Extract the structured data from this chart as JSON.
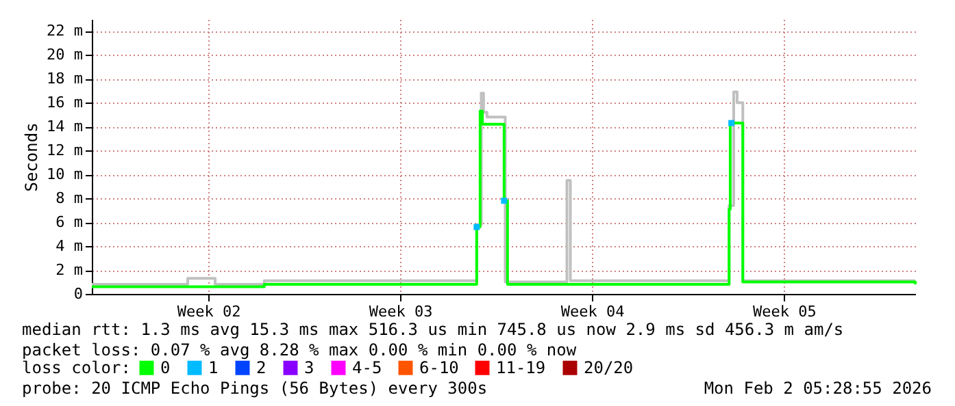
{
  "chart_data": {
    "type": "step",
    "ylabel": "Seconds",
    "x": [
      "2026-01-04T06:00",
      "2026-01-08T11:00",
      "2026-01-10T13:00",
      "2026-01-13T06:00",
      "2026-01-18T07:00",
      "2026-01-18T10:00",
      "2026-01-18T12:00",
      "2026-01-19T07:00",
      "2026-01-19T10:00",
      "2026-01-22T06:00",
      "2026-01-27T12:00",
      "2026-01-27T13:00",
      "2026-01-28T00:00",
      "2026-02-03T07:00"
    ],
    "series": [
      {
        "type": "step",
        "color": "#c0c0c0",
        "x": [
          "2026-01-04T06:00",
          "2026-01-07T18:00",
          "2026-01-08T18:00",
          "2026-01-10T13:00",
          "2026-01-18T07:00",
          "2026-01-18T11:00",
          "2026-01-18T13:00",
          "2026-01-18T16:00",
          "2026-01-19T08:00",
          "2026-01-21T14:00",
          "2026-01-21T17:00",
          "2026-01-27T12:00",
          "2026-01-27T16:00",
          "2026-01-27T19:00",
          "2026-01-28T00:00",
          "2026-02-03T07:00"
        ],
        "values": [
          0.8,
          1.3,
          0.8,
          1.1,
          5.8,
          16.8,
          15.2,
          14.8,
          1.0,
          9.5,
          1.1,
          7.4,
          16.9,
          16.0,
          1.1,
          1.1
        ]
      },
      {
        "name": "0",
        "color": "#00ff00",
        "values": [
          0.6,
          0.6,
          0.8,
          0.8,
          5.6,
          15.3,
          14.2,
          7.8,
          0.8,
          0.8,
          7.1,
          14.3,
          1.0,
          0.8
        ]
      },
      {
        "type": "scatter",
        "name": "1",
        "color": "#00bbff",
        "x": [
          "2026-01-18T07:00",
          "2026-01-19T07:00",
          "2026-01-27T14:00"
        ],
        "values": [
          5.6,
          7.8,
          14.3
        ]
      },
      {
        "type": "scatter",
        "name": "2",
        "color": "#0044ff",
        "values": [
          null,
          null,
          null,
          null,
          null,
          null,
          null,
          null,
          null,
          null,
          null,
          null,
          null,
          null
        ]
      },
      {
        "type": "scatter",
        "name": "3",
        "color": "#8800ff",
        "values": [
          null,
          null,
          null,
          null,
          null,
          null,
          null,
          null,
          null,
          null,
          null,
          null,
          null,
          null
        ]
      },
      {
        "type": "scatter",
        "name": "4-5",
        "color": "#ff00ff",
        "values": [
          null,
          null,
          null,
          null,
          null,
          null,
          null,
          null,
          null,
          null,
          null,
          null,
          null,
          null
        ]
      },
      {
        "type": "scatter",
        "name": "6-10",
        "color": "#ff5500",
        "values": [
          null,
          null,
          null,
          null,
          null,
          null,
          null,
          null,
          null,
          null,
          null,
          null,
          null,
          null
        ]
      },
      {
        "type": "scatter",
        "name": "11-19",
        "color": "#ff0000",
        "values": [
          null,
          null,
          null,
          null,
          null,
          null,
          null,
          null,
          null,
          null,
          null,
          null,
          null,
          null
        ]
      },
      {
        "type": "scatter",
        "name": "20/20",
        "color": "#aa0000",
        "values": [
          null,
          null,
          null,
          null,
          null,
          null,
          null,
          null,
          null,
          null,
          null,
          null,
          null,
          null
        ]
      }
    ],
    "legend_title": "loss color:",
    "legend": "bottom",
    "xlim": [
      "2026-01-04T06:00",
      "2026-02-03T07:00"
    ],
    "xticks": [
      {
        "value": "2026-01-08T12:00",
        "label": "Week 02"
      },
      {
        "value": "2026-01-15T12:00",
        "label": "Week 03"
      },
      {
        "value": "2026-01-22T12:00",
        "label": "Week 04"
      },
      {
        "value": "2026-01-29T12:00",
        "label": "Week 05"
      }
    ],
    "ylim": [
      0,
      23
    ],
    "yticks": [
      0,
      {
        "value": 2,
        "label": "2 m"
      },
      {
        "value": 4,
        "label": "4 m"
      },
      {
        "value": 6,
        "label": "6 m"
      },
      {
        "value": 8,
        "label": "8 m"
      },
      {
        "value": 10,
        "label": "10 m"
      },
      {
        "value": 12,
        "label": "12 m"
      },
      {
        "value": 14,
        "label": "14 m"
      },
      {
        "value": 16,
        "label": "16 m"
      },
      {
        "value": 18,
        "label": "18 m"
      },
      {
        "value": 20,
        "label": "20 m"
      },
      {
        "value": 22,
        "label": "22 m"
      }
    ],
    "grid": true,
    "annotations": [
      "median rtt:  1.3 ms avg  15.3 ms max  516.3 us min  745.8 us now  2.9 ms sd  456.3 m am/s",
      "packet loss: 0.07 % avg  8.28 % max  0.00 % min  0.00 % now",
      "probe:       20 ICMP Echo Pings (56 Bytes) every 300s",
      "Mon Feb  2 05:28:55 2026"
    ]
  }
}
